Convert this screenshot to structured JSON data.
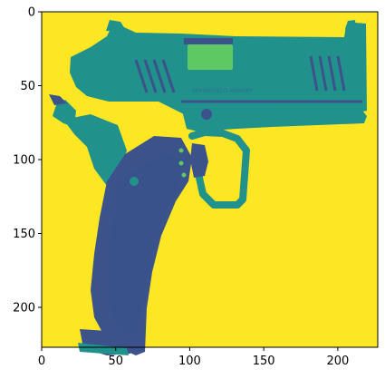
{
  "figure": {
    "colormap": "viridis",
    "background_color": "#fde725",
    "dark_color": "#3b528b",
    "mid_color": "#21918c",
    "light_color": "#5ec962",
    "x_axis": {
      "range": [
        0,
        227
      ],
      "ticks": [
        0,
        50,
        100,
        150,
        200
      ],
      "tick_labels": [
        "0",
        "50",
        "100",
        "150",
        "200"
      ]
    },
    "y_axis": {
      "range": [
        227,
        0
      ],
      "inverted": true,
      "ticks": [
        0,
        50,
        100,
        150,
        200
      ],
      "tick_labels": [
        "0",
        "50",
        "100",
        "150",
        "200"
      ]
    },
    "subject": "pistol-image",
    "engraving_text": "SPRINGFIELD ARMORY"
  }
}
